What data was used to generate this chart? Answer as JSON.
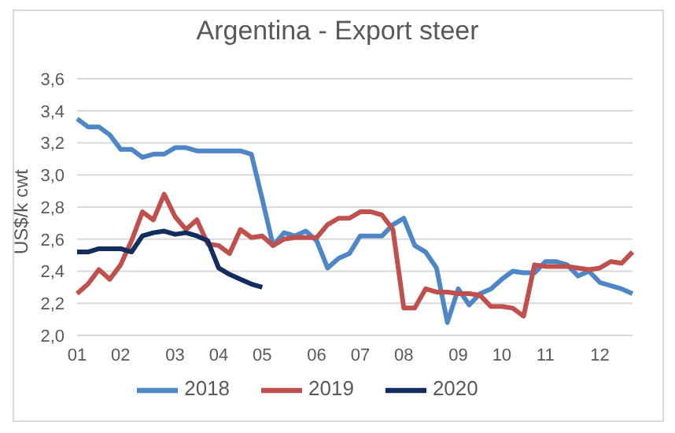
{
  "chart_data": {
    "type": "line",
    "title": "Argentina - Export steer",
    "ylabel": "US$/k cwt",
    "categories": [
      "01",
      null,
      null,
      null,
      "02",
      null,
      null,
      null,
      null,
      "03",
      null,
      null,
      null,
      "04",
      null,
      null,
      null,
      "05",
      null,
      null,
      null,
      null,
      "06",
      null,
      null,
      null,
      "07",
      null,
      null,
      null,
      "08",
      null,
      null,
      null,
      null,
      "09",
      null,
      null,
      null,
      "10",
      null,
      null,
      null,
      "11",
      null,
      null,
      null,
      null,
      "12",
      null,
      null,
      null
    ],
    "series": [
      {
        "name": "2018",
        "color": "#4f86c6",
        "values": [
          3.35,
          3.3,
          3.3,
          3.25,
          3.16,
          3.16,
          3.11,
          3.13,
          3.13,
          3.17,
          3.17,
          3.15,
          3.15,
          3.15,
          3.15,
          3.15,
          3.13,
          2.85,
          2.56,
          2.64,
          2.62,
          2.65,
          2.59,
          2.42,
          2.48,
          2.51,
          2.62,
          2.62,
          2.62,
          2.69,
          2.73,
          2.56,
          2.52,
          2.42,
          2.08,
          2.29,
          2.19,
          2.26,
          2.29,
          2.35,
          2.4,
          2.39,
          2.39,
          2.46,
          2.46,
          2.44,
          2.37,
          2.4,
          2.33,
          2.31,
          2.29,
          2.26
        ]
      },
      {
        "name": "2019",
        "color": "#c0504d",
        "values": [
          2.26,
          2.32,
          2.41,
          2.35,
          2.44,
          2.59,
          2.77,
          2.72,
          2.88,
          2.74,
          2.66,
          2.72,
          2.57,
          2.56,
          2.51,
          2.66,
          2.61,
          2.62,
          2.56,
          2.6,
          2.61,
          2.61,
          2.61,
          2.69,
          2.73,
          2.73,
          2.77,
          2.77,
          2.75,
          2.66,
          2.17,
          2.17,
          2.29,
          2.27,
          2.27,
          2.26,
          2.26,
          2.25,
          2.18,
          2.18,
          2.17,
          2.12,
          2.44,
          2.43,
          2.43,
          2.43,
          2.42,
          2.41,
          2.42,
          2.46,
          2.45,
          2.52
        ]
      },
      {
        "name": "2020",
        "color": "#132e5e",
        "values": [
          2.52,
          2.52,
          2.54,
          2.54,
          2.54,
          2.52,
          2.62,
          2.64,
          2.65,
          2.63,
          2.64,
          2.62,
          2.59,
          2.42,
          2.38,
          2.35,
          2.32,
          2.3,
          null,
          null,
          null,
          null,
          null,
          null,
          null,
          null,
          null,
          null,
          null,
          null,
          null,
          null,
          null,
          null,
          null,
          null,
          null,
          null,
          null,
          null,
          null,
          null,
          null,
          null,
          null,
          null,
          null,
          null,
          null,
          null,
          null,
          null
        ]
      }
    ],
    "ylim": [
      2.0,
      3.6
    ],
    "yticks": [
      {
        "value": 2.0,
        "label": "2,0"
      },
      {
        "value": 2.2,
        "label": "2,2"
      },
      {
        "value": 2.4,
        "label": "2,4"
      },
      {
        "value": 2.6,
        "label": "2,6"
      },
      {
        "value": 2.8,
        "label": "2,8"
      },
      {
        "value": 3.0,
        "label": "3,0"
      },
      {
        "value": 3.2,
        "label": "3,2"
      },
      {
        "value": 3.4,
        "label": "3,4"
      },
      {
        "value": 3.6,
        "label": "3,6"
      }
    ],
    "grid": "y",
    "legend": "bottom",
    "marker": "none",
    "line_style": "solid"
  }
}
